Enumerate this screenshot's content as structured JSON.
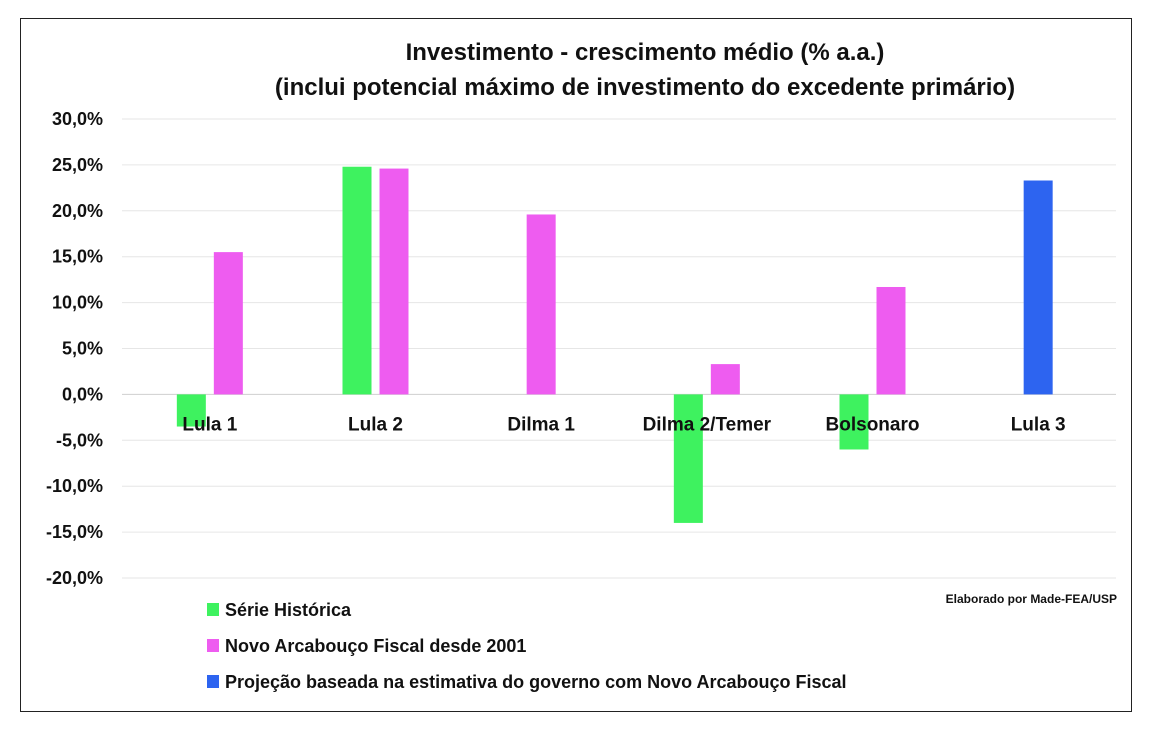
{
  "chart_data": {
    "type": "bar",
    "title": "Investimento - crescimento médio  (% a.a.)",
    "subtitle": "(inclui potencial máximo de investimento do excedente primário)",
    "categories": [
      "Lula 1",
      "Lula 2",
      "Dilma 1",
      "Dilma 2/Temer",
      "Bolsonaro",
      "Lula 3"
    ],
    "series": [
      {
        "name": "Série Histórica",
        "color": "#3ef25f",
        "values": [
          -3.5,
          24.8,
          null,
          -14.0,
          -6.0,
          null
        ]
      },
      {
        "name": "Novo Arcabouço Fiscal desde 2001",
        "color": "#ee5cf0",
        "values": [
          15.5,
          24.6,
          19.6,
          3.3,
          11.7,
          null
        ]
      },
      {
        "name": "Projeção baseada na estimativa do governo com Novo Arcabouço Fiscal",
        "color": "#2d64f0",
        "values": [
          null,
          null,
          null,
          null,
          null,
          23.3
        ]
      }
    ],
    "ylim": [
      -20,
      30
    ],
    "yticks": [
      30,
      25,
      20,
      15,
      10,
      5,
      0,
      -5,
      -10,
      -15,
      -20
    ],
    "ytick_labels": [
      "30,0%",
      "25,0%",
      "20,0%",
      "15,0%",
      "10,0%",
      "5,0%",
      "0,0%",
      "-5,0%",
      "-10,0%",
      "-15,0%",
      "-20,0%"
    ],
    "grid": true,
    "legend_position": "bottom-left",
    "credit": "Elaborado por Made-FEA/USP"
  }
}
